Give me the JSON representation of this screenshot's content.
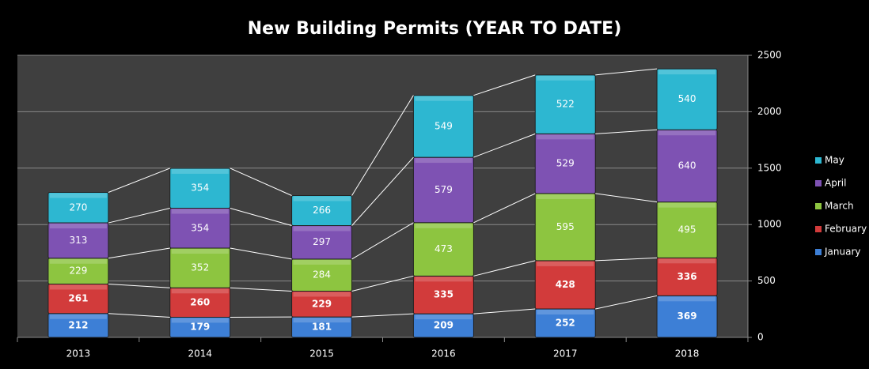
{
  "chart_data": {
    "type": "stacked-bar",
    "title": "New Building Permits (YEAR TO DATE)",
    "categories": [
      "2013",
      "2014",
      "2015",
      "2016",
      "2017",
      "2018"
    ],
    "series": [
      {
        "name": "January",
        "color": "#3d7fd6",
        "values": [
          212,
          179,
          181,
          209,
          252,
          369
        ]
      },
      {
        "name": "February",
        "color": "#d23b3b",
        "values": [
          261,
          260,
          229,
          335,
          428,
          336
        ]
      },
      {
        "name": "March",
        "color": "#8dc540",
        "values": [
          229,
          352,
          284,
          473,
          595,
          495
        ]
      },
      {
        "name": "April",
        "color": "#7e52b3",
        "values": [
          313,
          354,
          297,
          579,
          529,
          640
        ]
      },
      {
        "name": "May",
        "color": "#2db7d1",
        "values": [
          270,
          354,
          266,
          549,
          522,
          540
        ]
      }
    ],
    "ylim": [
      0,
      2500
    ],
    "yticks": [
      0,
      500,
      1000,
      1500,
      2000,
      2500
    ],
    "grid": true,
    "legend": "right"
  }
}
